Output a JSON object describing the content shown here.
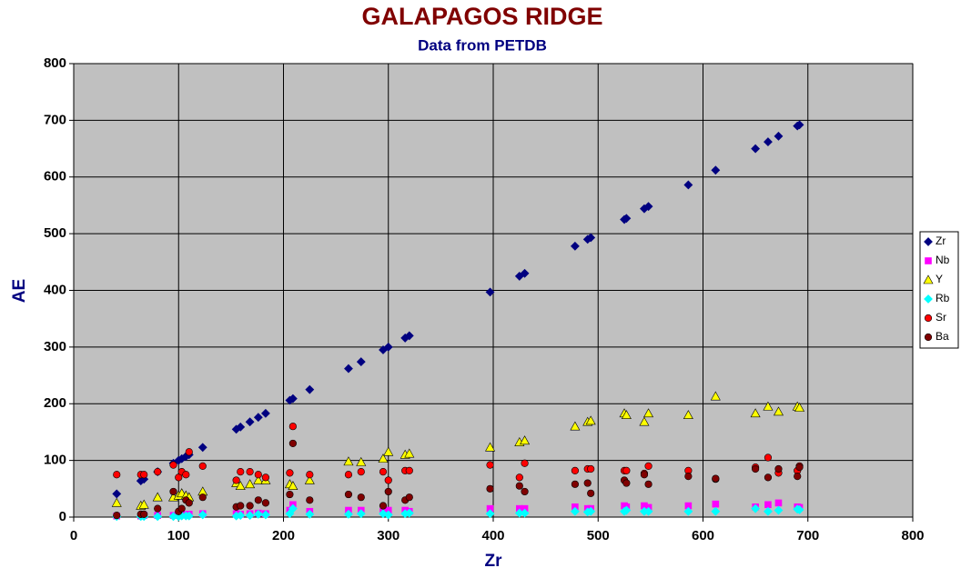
{
  "chart_data": {
    "type": "scatter",
    "title": "GALAPAGOS RIDGE",
    "subtitle": "Data from PETDB",
    "x_label": "Zr",
    "y_label": "AE",
    "x": [
      41,
      64,
      67,
      80,
      95,
      100,
      103,
      107,
      110,
      123,
      155,
      159,
      168,
      176,
      183,
      206,
      209,
      225,
      262,
      274,
      295,
      300,
      316,
      320,
      397,
      425,
      430,
      478,
      490,
      493,
      525,
      527,
      544,
      548,
      586,
      612,
      650,
      662,
      672,
      690,
      692
    ],
    "series": [
      {
        "name": "Zr",
        "color": "#000080",
        "marker": "diamond",
        "values": [
          41,
          64,
          67,
          80,
          95,
          100,
          103,
          107,
          110,
          123,
          155,
          159,
          168,
          176,
          183,
          206,
          209,
          225,
          262,
          274,
          295,
          300,
          316,
          320,
          397,
          425,
          430,
          478,
          490,
          493,
          525,
          527,
          544,
          548,
          586,
          612,
          650,
          662,
          672,
          690,
          692
        ]
      },
      {
        "name": "Nb",
        "color": "#ff00ff",
        "marker": "square",
        "values": [
          2,
          2,
          3,
          3,
          3,
          4,
          5,
          4,
          5,
          6,
          6,
          5,
          6,
          7,
          6,
          12,
          22,
          10,
          12,
          12,
          10,
          12,
          12,
          10,
          15,
          15,
          15,
          18,
          15,
          15,
          20,
          18,
          20,
          17,
          20,
          23,
          18,
          22,
          25,
          18,
          17
        ]
      },
      {
        "name": "Y",
        "color": "#ffff00",
        "marker": "triangle",
        "values": [
          25,
          20,
          22,
          35,
          35,
          38,
          42,
          38,
          35,
          45,
          60,
          55,
          58,
          65,
          65,
          58,
          55,
          65,
          98,
          97,
          103,
          115,
          110,
          112,
          123,
          132,
          135,
          160,
          168,
          170,
          183,
          180,
          168,
          183,
          180,
          213,
          183,
          195,
          186,
          195,
          193
        ]
      },
      {
        "name": "Rb",
        "color": "#00ffff",
        "marker": "diamond",
        "values": [
          1,
          1,
          1,
          1,
          1,
          1,
          2,
          2,
          2,
          4,
          2,
          3,
          3,
          5,
          4,
          6,
          15,
          5,
          5,
          6,
          6,
          4,
          6,
          7,
          6,
          7,
          7,
          10,
          9,
          10,
          10,
          12,
          10,
          10,
          10,
          10,
          15,
          10,
          12,
          14,
          13
        ]
      },
      {
        "name": "Sr",
        "color": "#ff0000",
        "marker": "circle",
        "values": [
          75,
          75,
          75,
          80,
          92,
          70,
          80,
          75,
          115,
          90,
          65,
          80,
          80,
          75,
          70,
          78,
          160,
          75,
          75,
          80,
          80,
          65,
          82,
          82,
          92,
          70,
          95,
          82,
          85,
          85,
          82,
          82,
          77,
          90,
          82,
          67,
          88,
          105,
          78,
          82,
          90
        ]
      },
      {
        "name": "Ba",
        "color": "#800000",
        "marker": "circle",
        "values": [
          3,
          5,
          5,
          15,
          45,
          10,
          15,
          30,
          25,
          35,
          18,
          20,
          20,
          30,
          25,
          40,
          130,
          30,
          40,
          35,
          20,
          45,
          30,
          35,
          50,
          55,
          45,
          58,
          60,
          42,
          65,
          60,
          75,
          58,
          72,
          68,
          85,
          70,
          85,
          72,
          88
        ]
      }
    ],
    "xlim": [
      0,
      800
    ],
    "xticks": [
      0,
      100,
      200,
      300,
      400,
      500,
      600,
      700,
      800
    ],
    "ylim": [
      0,
      800
    ],
    "yticks": [
      0,
      100,
      200,
      300,
      400,
      500,
      600,
      700,
      800
    ],
    "grid": true,
    "legend": "right"
  }
}
